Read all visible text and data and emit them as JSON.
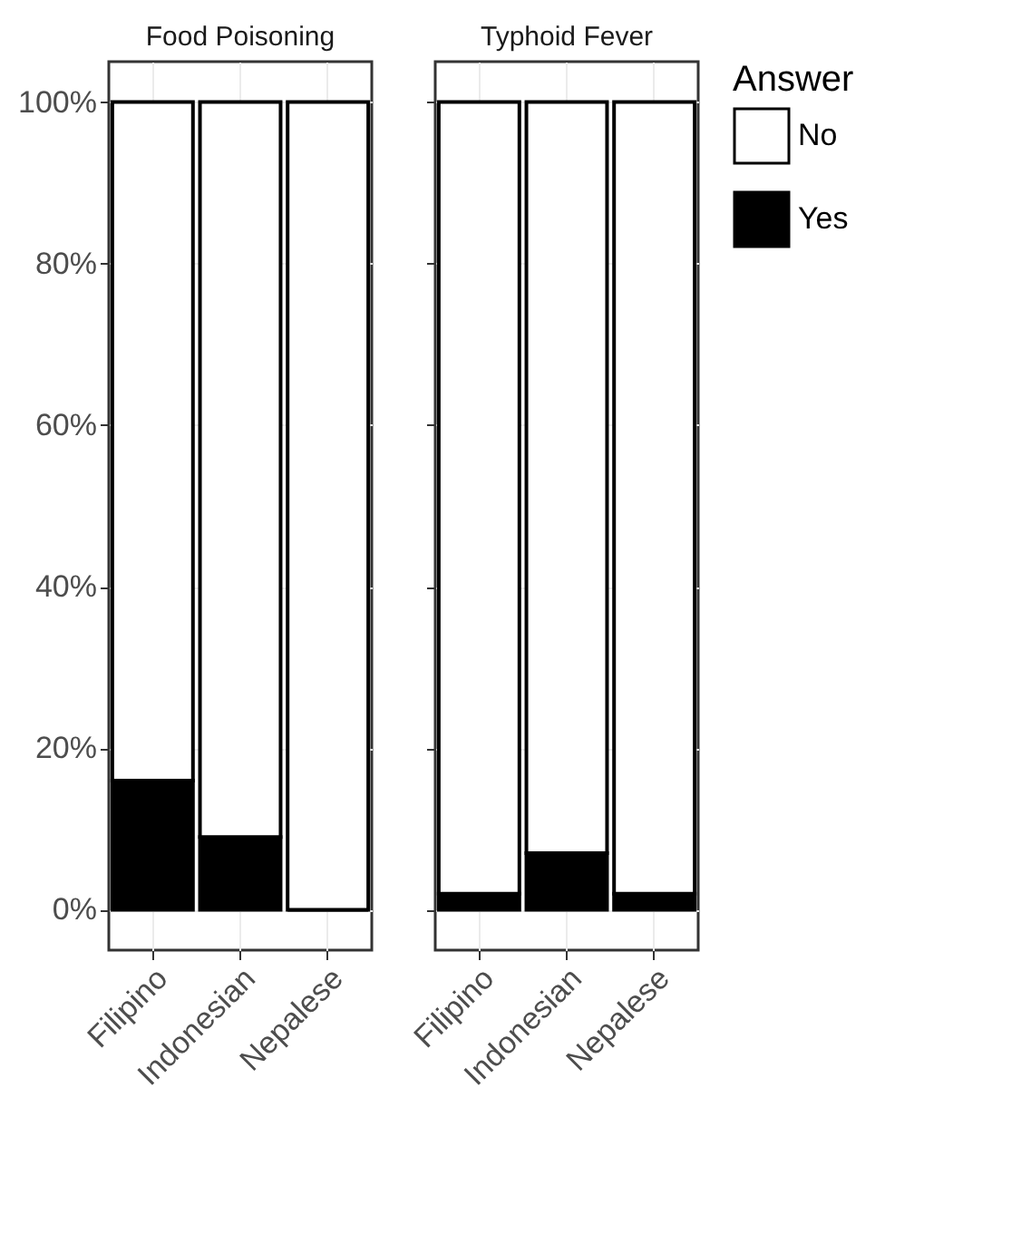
{
  "chart_data": [
    {
      "type": "bar",
      "title": "Food Poisoning",
      "categories": [
        "Filipino",
        "Indonesian",
        "Nepalese"
      ],
      "stacked": true,
      "grid": true,
      "legend": "right",
      "legend_title": "Answer",
      "series": [
        {
          "name": "Yes",
          "color": "#000000",
          "values": [
            16,
            9,
            0
          ]
        },
        {
          "name": "No",
          "color": "#ffffff",
          "values": [
            84,
            91,
            100
          ]
        }
      ],
      "ylim": [
        -5,
        105
      ],
      "yticks": [
        {
          "value": 0,
          "label": "0%"
        },
        {
          "value": 20,
          "label": "20%"
        },
        {
          "value": 40,
          "label": "40%"
        },
        {
          "value": 60,
          "label": "60%"
        },
        {
          "value": 80,
          "label": "80%"
        },
        {
          "value": 100,
          "label": "100%"
        }
      ]
    },
    {
      "type": "bar",
      "title": "Typhoid Fever",
      "categories": [
        "Filipino",
        "Indonesian",
        "Nepalese"
      ],
      "stacked": true,
      "grid": true,
      "tick_labels": "x",
      "series": [
        {
          "name": "Yes",
          "color": "#000000",
          "values": [
            2,
            7,
            2
          ]
        },
        {
          "name": "No",
          "color": "#ffffff",
          "values": [
            98,
            93,
            98
          ]
        }
      ],
      "ylim": [
        -5,
        105
      ],
      "yticks": [
        0,
        20,
        40,
        60,
        80,
        100
      ]
    }
  ]
}
